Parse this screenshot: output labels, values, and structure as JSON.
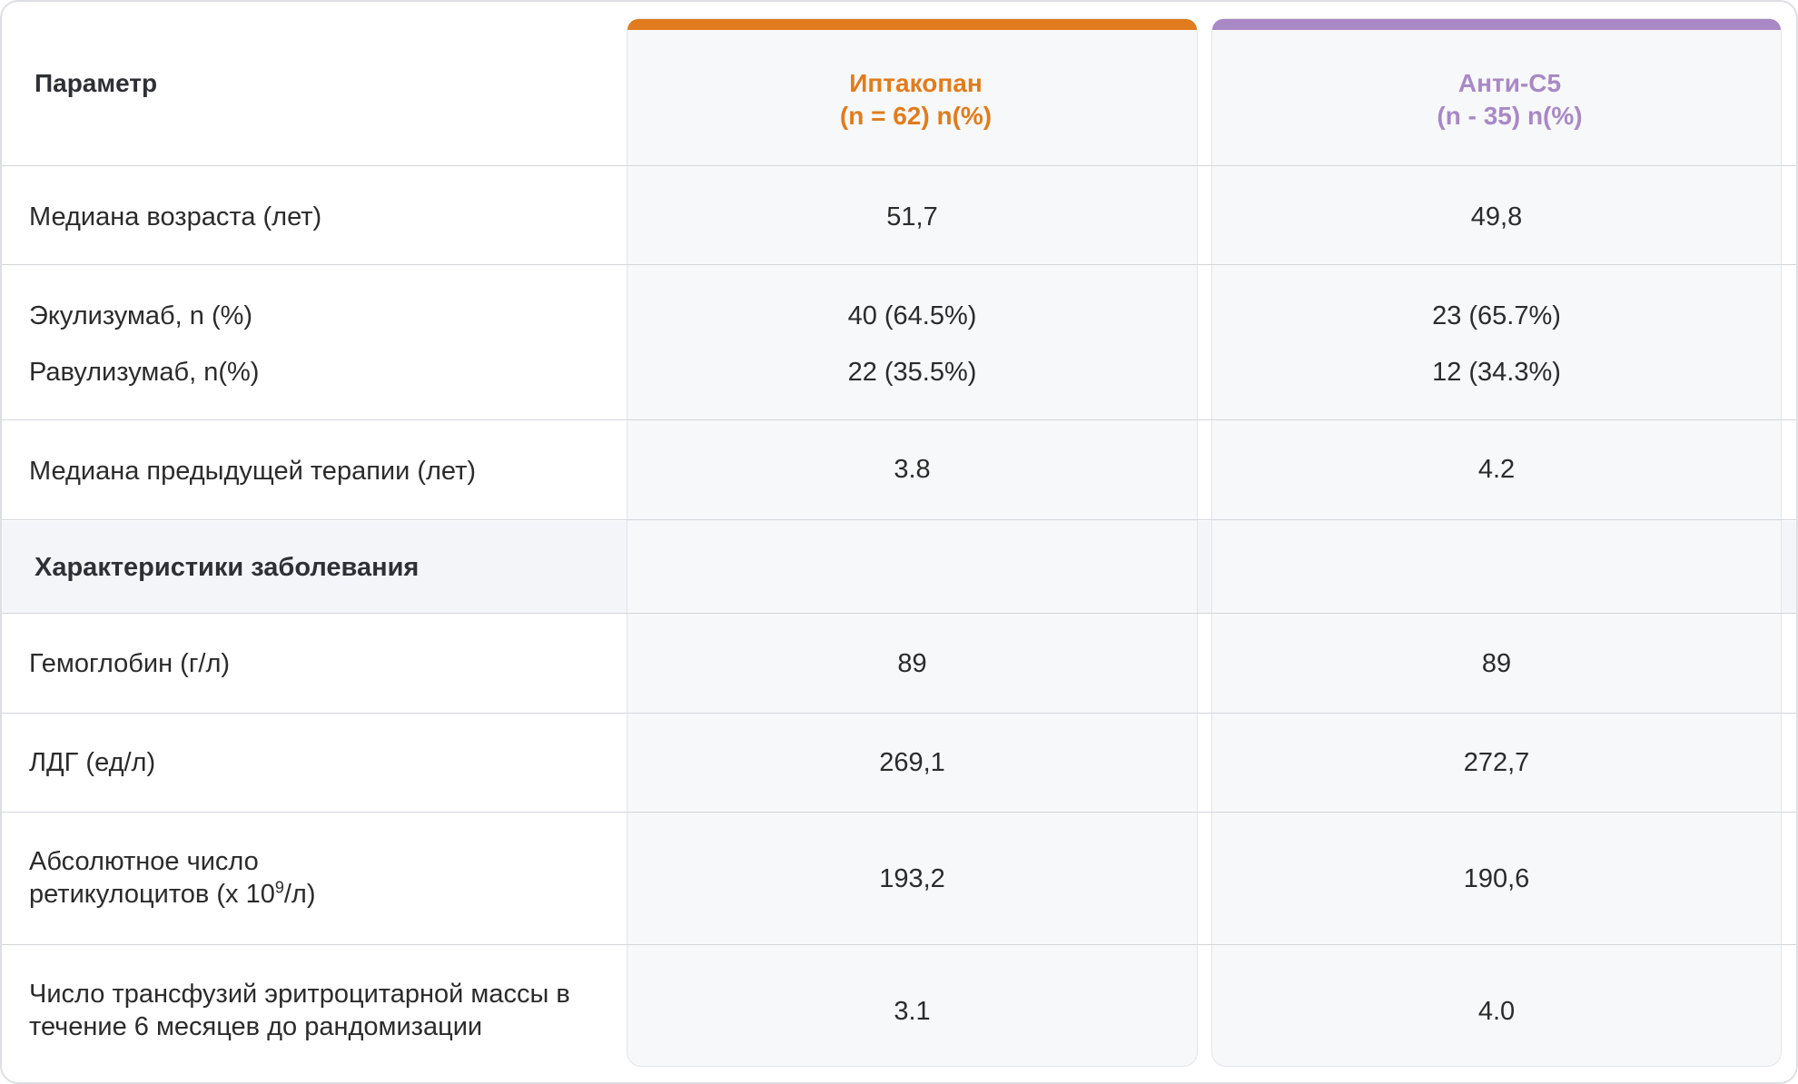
{
  "header": {
    "parameter": "Параметр",
    "iptakopan": {
      "name": "Иптакопан",
      "n": "(n = 62) n(%)"
    },
    "antic5": {
      "name": "Анти-С5",
      "n": "(n - 35) n(%)"
    }
  },
  "colors": {
    "iptakopan": "#e07c1d",
    "antic5": "#a889c6",
    "section_band": "#f3f5f9"
  },
  "rows_baseline": [
    {
      "param": "Медиана возраста (лет)",
      "iptakopan": "51,7",
      "antic5": "49,8"
    },
    {
      "param": "Экулизумаб, n (%)",
      "iptakopan": "40 (64.5%)",
      "antic5": "23 (65.7%)"
    },
    {
      "param": "Равулизумаб, n(%)",
      "iptakopan": "22 (35.5%)",
      "antic5": "12 (34.3%)"
    },
    {
      "param": "Медиана предыдущей терапии (лет)",
      "iptakopan": "3.8",
      "antic5": "4.2"
    }
  ],
  "section": {
    "title": "Характеристики заболевания"
  },
  "rows_disease": [
    {
      "param": "Гемоглобин (г/л)",
      "iptakopan": "89",
      "antic5": "89"
    },
    {
      "param": "ЛДГ (ед/л)",
      "iptakopan": "269,1",
      "antic5": "272,7"
    },
    {
      "param_line1": "Абсолютное число",
      "param_line2_pre": "ретикулоцитов (х 10",
      "param_sup": "9",
      "param_line2_post": "/л)",
      "iptakopan": "193,2",
      "antic5": "190,6"
    },
    {
      "param": "Число трансфузий эритроцитарной массы в течение 6 месяцев до рандомизации",
      "iptakopan": "3.1",
      "antic5": "4.0"
    }
  ]
}
